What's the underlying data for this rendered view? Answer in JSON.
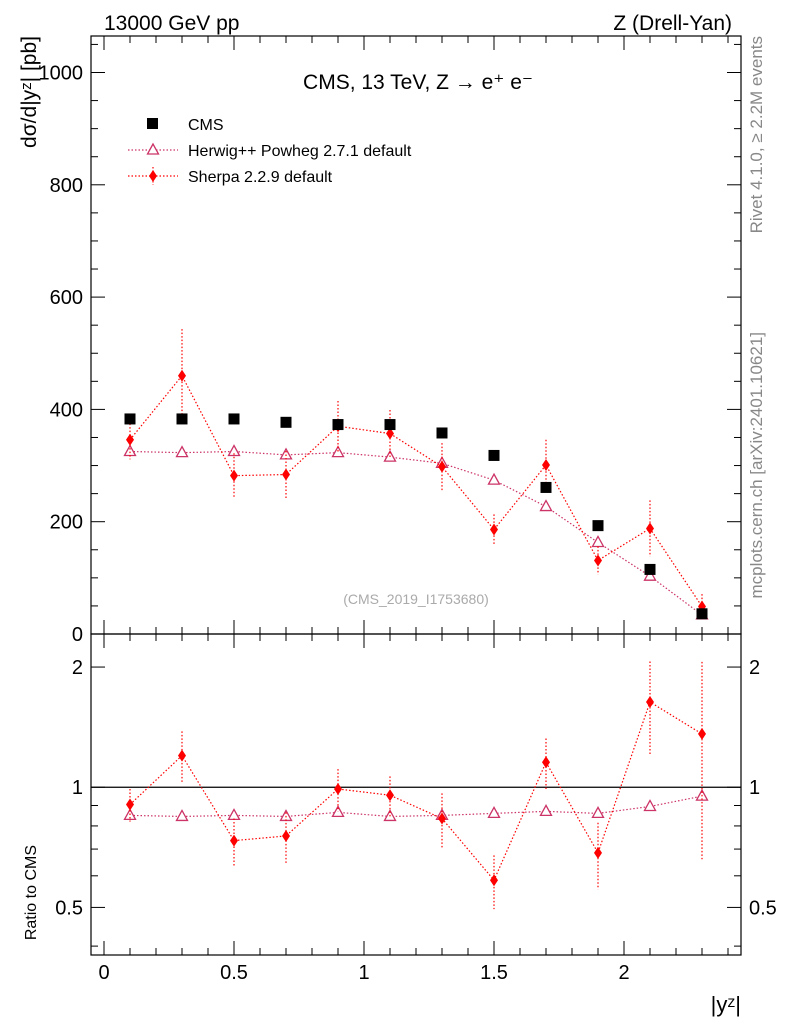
{
  "header": {
    "left": "13000 GeV pp",
    "right": "Z (Drell-Yan)"
  },
  "side_text": {
    "rivet": "Rivet 4.1.0, ≥ 2.2M events",
    "mcplots": "mcplots.cern.ch [arXiv:2401.10621]"
  },
  "chart_data": [
    {
      "type": "scatter",
      "panel": "main",
      "title": "CMS, 13 TeV, Z →  e⁺ e⁻",
      "watermark": "(CMS_2019_I1753680)",
      "ylabel": "dσ/d|yᶻ| [pb]",
      "xlabel": "|yᶻ|",
      "xlim": [
        -0.05,
        2.45
      ],
      "ylim": [
        0,
        1065
      ],
      "x_ticks": [
        "0",
        "0.5",
        "1",
        "1.5",
        "2"
      ],
      "y_ticks": [
        "0",
        "200",
        "400",
        "600",
        "800",
        "1000"
      ],
      "legend_position": "top-left",
      "x": [
        0.1,
        0.3,
        0.5,
        0.7,
        0.9,
        1.1,
        1.3,
        1.5,
        1.7,
        1.9,
        2.1,
        2.3
      ],
      "series": [
        {
          "name": "CMS",
          "marker": "square",
          "color": "#000000",
          "values": [
            383,
            383,
            383,
            377,
            373,
            373,
            358,
            318,
            261,
            193,
            115,
            36
          ]
        },
        {
          "name": "Herwig++ Powheg 2.7.1 default",
          "marker": "triangle-open",
          "color": "#cc3366",
          "values": [
            325,
            323,
            325,
            319,
            323,
            315,
            304,
            274,
            227,
            163,
            103,
            34
          ]
        },
        {
          "name": "Sherpa 2.2.9 default",
          "marker": "diamond",
          "color": "#ff0000",
          "values": [
            346,
            460,
            282,
            284,
            370,
            357,
            298,
            186,
            301,
            131,
            188,
            49
          ],
          "errors": [
            35,
            83,
            40,
            42,
            45,
            42,
            42,
            27,
            45,
            25,
            50,
            22
          ]
        }
      ]
    },
    {
      "type": "scatter",
      "panel": "ratio",
      "ylabel": "Ratio to CMS",
      "xlabel": "|yᶻ|",
      "xlim": [
        -0.05,
        2.45
      ],
      "ylim": [
        0.38,
        2.42
      ],
      "y_scale": "log",
      "x_ticks": [
        "0",
        "0.5",
        "1",
        "1.5",
        "2"
      ],
      "y_ticks": [
        "0.5",
        "1",
        "2"
      ],
      "reference": 1,
      "x": [
        0.1,
        0.3,
        0.5,
        0.7,
        0.9,
        1.1,
        1.3,
        1.5,
        1.7,
        1.9,
        2.1,
        2.3
      ],
      "series": [
        {
          "name": "Herwig++ Powheg 2.7.1 default",
          "marker": "triangle-open",
          "color": "#cc3366",
          "values": [
            0.85,
            0.845,
            0.85,
            0.845,
            0.865,
            0.845,
            0.85,
            0.86,
            0.87,
            0.86,
            0.895,
            0.95
          ]
        },
        {
          "name": "Sherpa 2.2.9 default",
          "marker": "diamond",
          "color": "#ff0000",
          "values": [
            0.905,
            1.2,
            0.735,
            0.755,
            0.99,
            0.955,
            0.835,
            0.585,
            1.155,
            0.685,
            1.635,
            1.36
          ],
          "err_lo": [
            0.085,
            0.18,
            0.1,
            0.11,
            0.12,
            0.11,
            0.13,
            0.09,
            0.17,
            0.13,
            0.43,
            0.7
          ],
          "err_hi": [
            0.085,
            0.18,
            0.1,
            0.11,
            0.12,
            0.11,
            0.13,
            0.09,
            0.17,
            0.13,
            0.43,
            0.7
          ]
        }
      ]
    }
  ]
}
